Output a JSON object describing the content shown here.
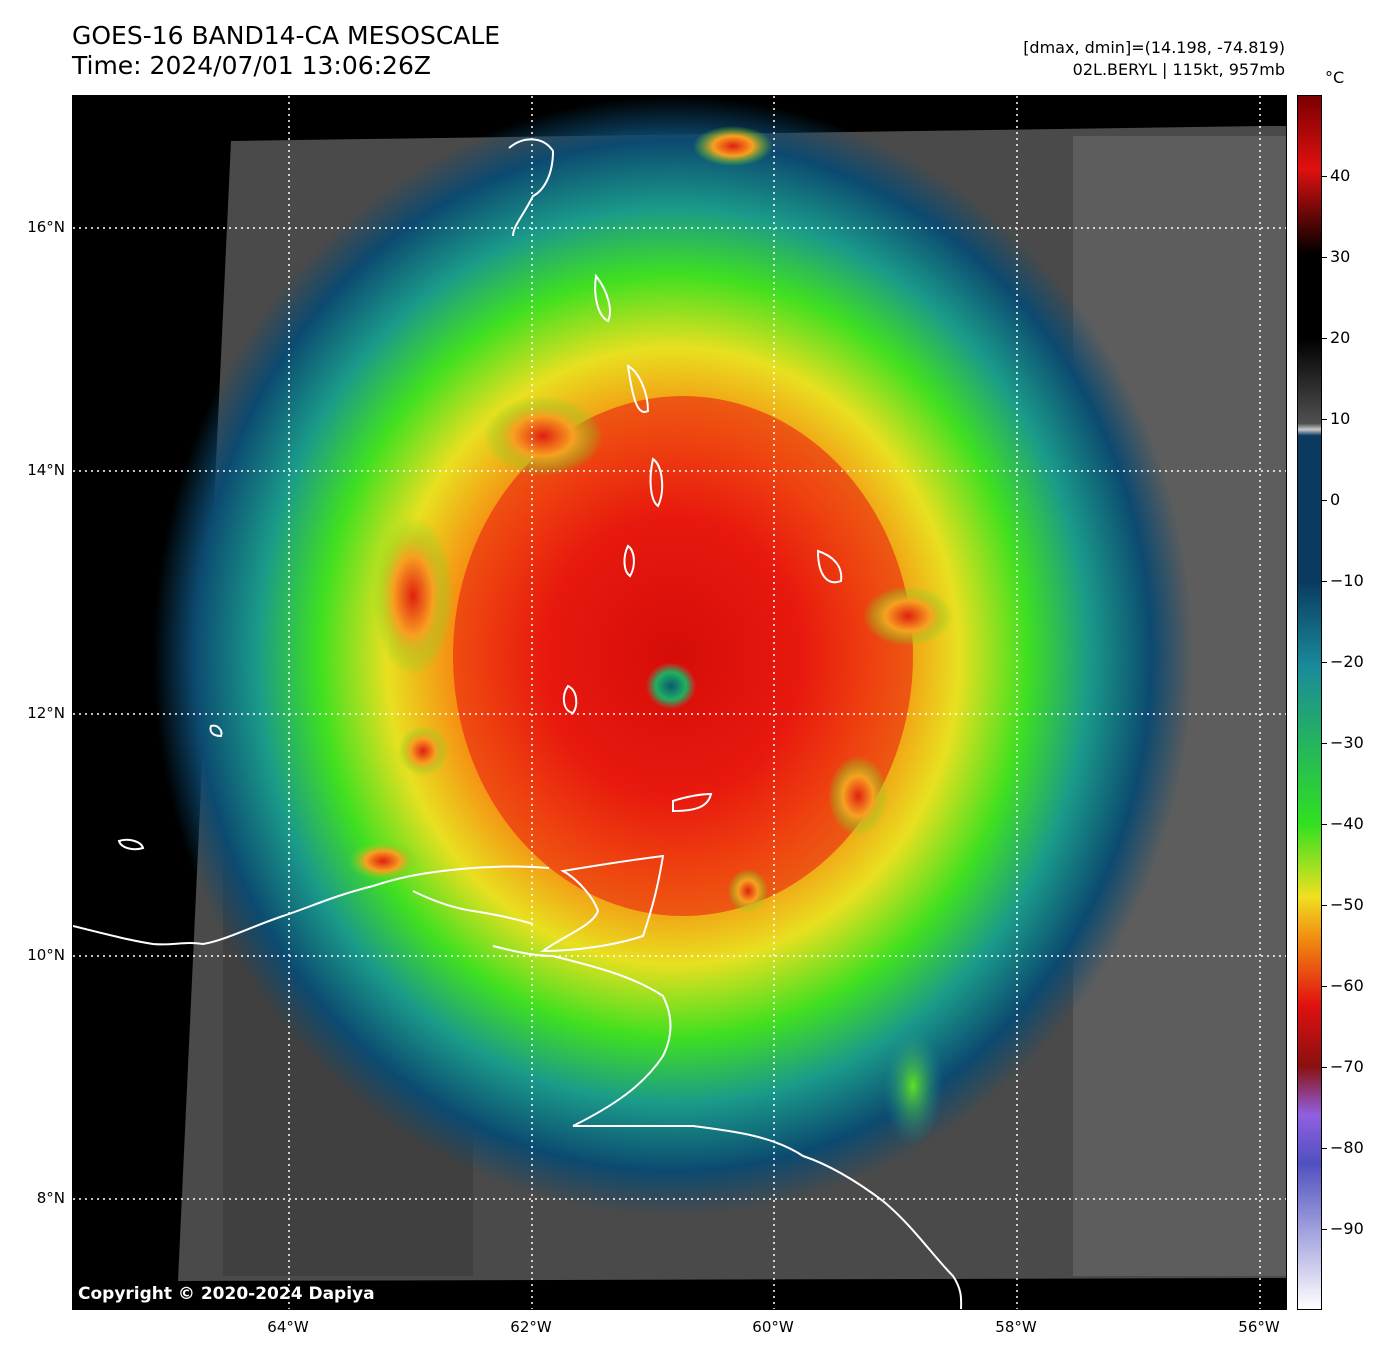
{
  "header": {
    "title_line1": "GOES-16 BAND14-CA MESOSCALE",
    "title_line2": "Time: 2024/07/01 13:06:26Z",
    "info_line1": "[dmax, dmin]=(14.198, -74.819)",
    "info_line2": "02L.BERYL | 115kt, 957mb"
  },
  "map": {
    "lat_labels": [
      "16°N",
      "14°N",
      "12°N",
      "10°N",
      "8°N"
    ],
    "lon_labels": [
      "64°W",
      "62°W",
      "60°W",
      "58°W",
      "56°W"
    ],
    "storm_center": {
      "lat": 12.2,
      "lon": -61.2
    },
    "copyright": "Copyright © 2020-2024 Dapiya"
  },
  "colorbar": {
    "unit": "°C",
    "labels": [
      "40",
      "30",
      "20",
      "10",
      "0",
      "−10",
      "−20",
      "−30",
      "−40",
      "−50",
      "−60",
      "−70",
      "−80",
      "−90"
    ],
    "range": [
      -100,
      50
    ],
    "colors": {
      "warm_red": "#7a0000",
      "black": "#000000",
      "gray": "#c8c8c8",
      "dark_blue": "#0a3a60",
      "teal": "#1a8a9a",
      "green": "#30e020",
      "yellow": "#f0e020",
      "orange": "#f08010",
      "red": "#e01010",
      "purple": "#9060e0",
      "white": "#ffffff"
    }
  }
}
